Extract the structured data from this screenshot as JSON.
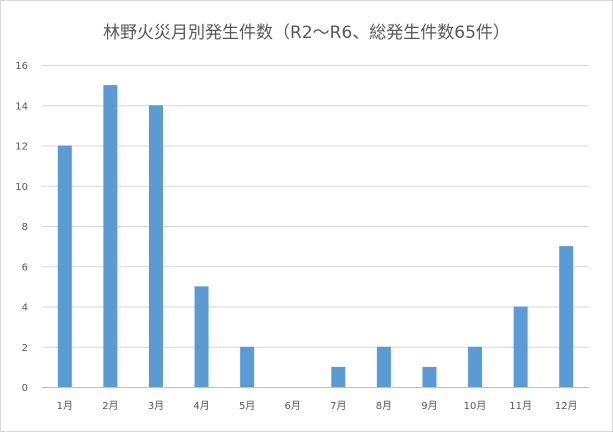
{
  "chart_data": {
    "type": "bar",
    "title": "林野火災月別発生件数（R2～R6、総発生件数65件）",
    "categories": [
      "1月",
      "2月",
      "3月",
      "4月",
      "5月",
      "6月",
      "7月",
      "8月",
      "9月",
      "10月",
      "11月",
      "12月"
    ],
    "values": [
      12,
      15,
      14,
      5,
      2,
      0,
      1,
      2,
      1,
      2,
      4,
      7
    ],
    "ylim": [
      0,
      16
    ],
    "yticks": [
      0,
      2,
      4,
      6,
      8,
      10,
      12,
      14,
      16
    ],
    "grid": true,
    "legend": "none",
    "bar_color": "#5b9bd5",
    "grid_color": "#d9d9d9",
    "text_color": "#595959"
  }
}
